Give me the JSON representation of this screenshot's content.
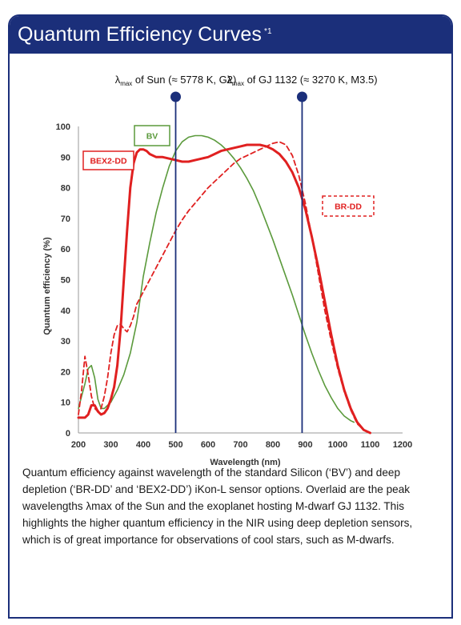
{
  "header": {
    "title": "Quantum Efficiency Curves",
    "title_note": "*1"
  },
  "chart_data": {
    "type": "line",
    "xlabel": "Wavelength (nm)",
    "ylabel": "Quantum efficiency (%)",
    "xlim": [
      200,
      1200
    ],
    "ylim": [
      0,
      100
    ],
    "xticks": [
      200,
      300,
      400,
      500,
      600,
      700,
      800,
      900,
      1000,
      1100,
      1200
    ],
    "yticks": [
      0,
      10,
      20,
      30,
      40,
      50,
      60,
      70,
      80,
      90,
      100
    ],
    "grid": false,
    "series": [
      {
        "name": "BV",
        "color": "#5b9a3c",
        "style": "solid",
        "x": [
          200,
          210,
          220,
          230,
          240,
          250,
          260,
          270,
          280,
          290,
          300,
          320,
          340,
          360,
          380,
          400,
          420,
          440,
          460,
          480,
          500,
          520,
          540,
          560,
          580,
          600,
          620,
          640,
          660,
          680,
          700,
          720,
          740,
          760,
          780,
          800,
          820,
          840,
          860,
          880,
          900,
          920,
          940,
          960,
          980,
          1000,
          1020,
          1040,
          1050
        ],
        "y": [
          8,
          12,
          16,
          21,
          22,
          18,
          11,
          8,
          8,
          9,
          10,
          14,
          19,
          26,
          36,
          51,
          62,
          72,
          80,
          87,
          92,
          95,
          96.5,
          97,
          97,
          96.5,
          95.5,
          94,
          92,
          89.5,
          86.5,
          83,
          79,
          74,
          68.5,
          63,
          57,
          51,
          45,
          38.5,
          32,
          26,
          20.5,
          15.5,
          11.5,
          8,
          5.5,
          4,
          3.5
        ]
      },
      {
        "name": "BR-DD",
        "color": "#e02020",
        "style": "dashed",
        "x": [
          200,
          210,
          220,
          230,
          240,
          250,
          260,
          270,
          280,
          290,
          300,
          310,
          320,
          330,
          340,
          350,
          360,
          370,
          380,
          400,
          420,
          440,
          460,
          480,
          500,
          520,
          540,
          560,
          580,
          600,
          620,
          640,
          660,
          680,
          700,
          720,
          740,
          760,
          780,
          800,
          820,
          840,
          860,
          880,
          900,
          920,
          940,
          960,
          980,
          1000,
          1020,
          1040,
          1060,
          1080,
          1100
        ],
        "y": [
          6,
          14,
          25,
          19,
          12,
          8,
          7,
          8,
          12,
          18,
          26,
          32,
          35,
          35.5,
          34,
          33,
          35,
          38,
          42,
          46,
          50,
          54,
          58,
          62,
          66,
          69.5,
          72.5,
          75,
          77.5,
          80,
          82,
          84,
          86,
          88,
          89.5,
          90.5,
          91.5,
          92.5,
          93.5,
          94.5,
          95,
          94,
          90.5,
          84,
          75,
          64,
          52,
          40,
          30,
          21,
          13.5,
          7.5,
          3,
          1,
          0
        ]
      },
      {
        "name": "BEX2-DD",
        "color": "#e02020",
        "style": "solid",
        "x": [
          200,
          210,
          220,
          230,
          240,
          250,
          260,
          270,
          280,
          290,
          300,
          310,
          320,
          330,
          340,
          350,
          360,
          370,
          380,
          390,
          400,
          410,
          420,
          440,
          460,
          480,
          500,
          520,
          540,
          560,
          580,
          600,
          620,
          640,
          660,
          680,
          700,
          720,
          740,
          760,
          780,
          800,
          820,
          840,
          860,
          880,
          900,
          920,
          940,
          960,
          980,
          1000,
          1020,
          1040,
          1060,
          1080,
          1100
        ],
        "y": [
          5,
          5,
          5,
          6,
          9,
          9,
          7,
          6,
          6.5,
          8,
          11,
          15,
          22,
          34,
          50,
          66,
          80,
          88,
          91.5,
          92.5,
          92.5,
          92,
          91,
          90,
          90,
          89.5,
          89,
          88.5,
          88.5,
          89,
          89.5,
          90,
          91,
          92,
          92.5,
          93,
          93.5,
          94,
          94,
          94,
          93.5,
          92.5,
          91,
          88.5,
          85,
          80,
          73,
          64,
          54,
          43,
          32,
          22,
          14,
          8,
          3.5,
          1,
          0
        ]
      }
    ],
    "series_labels": [
      {
        "text": "BV",
        "color": "#5b9a3c",
        "border": "solid"
      },
      {
        "text": "BEX2-DD",
        "color": "#e02020",
        "border": "solid"
      },
      {
        "text": "BR-DD",
        "color": "#e02020",
        "border": "dashed"
      }
    ],
    "markers": [
      {
        "x": 500,
        "label_main": "λ",
        "label_sub": "max",
        "label_rest": " of Sun (≈ 5778 K, G2)",
        "color": "#1b2f7a"
      },
      {
        "x": 890,
        "label_main": "λ",
        "label_sub": "max",
        "label_rest": " of GJ 1132 (≈ 3270 K, M3.5)",
        "color": "#1b2f7a"
      }
    ]
  },
  "caption": "Quantum efficiency against wavelength of the standard Silicon (‘BV’) and deep depletion (‘BR-DD’ and ‘BEX2-DD’) iKon-L sensor options. Overlaid are the peak wavelengths λmax of the Sun and the exoplanet hosting M-dwarf GJ 1132. This highlights the higher quantum efficiency in the NIR using deep depletion sensors, which is of great importance for observations of cool stars, such as M-dwarfs."
}
